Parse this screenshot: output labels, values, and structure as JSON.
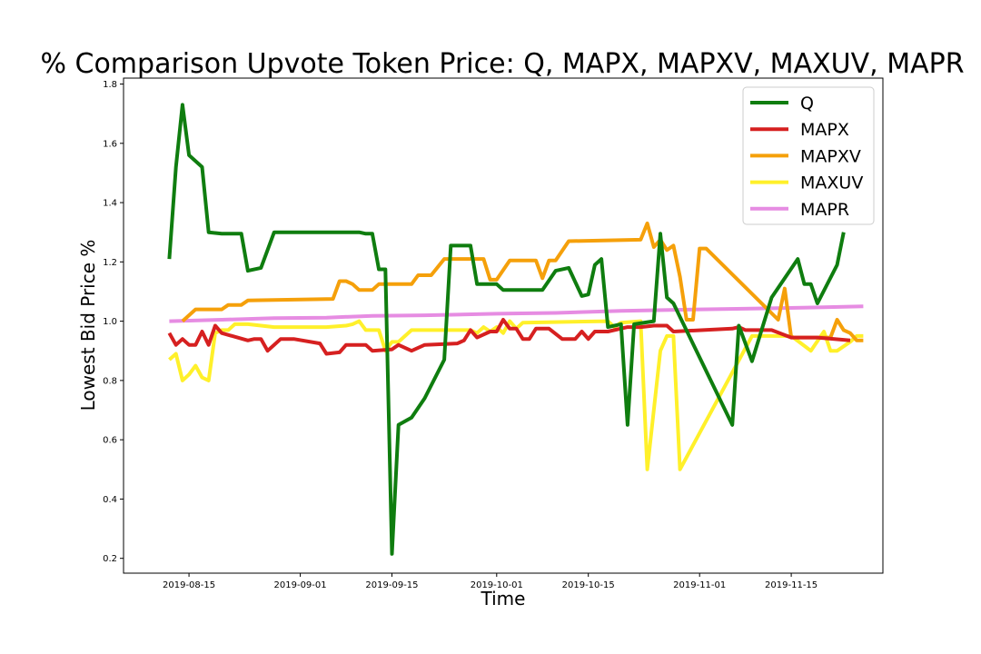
{
  "chart_data": {
    "type": "line",
    "title": "% Comparison Upvote Token Price: Q, MAPX, MAPXV, MAXUV, MAPR",
    "xlabel": "Time",
    "ylabel": "Lowest Bid Price %",
    "xlim": [
      "2019-08-05",
      "2019-11-29"
    ],
    "ylim": [
      0.15,
      1.82
    ],
    "x_ticks": [
      "2019-08-15",
      "2019-09-01",
      "2019-09-15",
      "2019-10-01",
      "2019-10-15",
      "2019-11-01",
      "2019-11-15"
    ],
    "y_ticks": [
      0.2,
      0.4,
      0.6,
      0.8,
      1.0,
      1.2,
      1.4,
      1.6,
      1.8
    ],
    "y_tick_labels": [
      "0.2",
      "0.4",
      "0.6",
      "0.8",
      "1.0",
      "1.2",
      "1.4",
      "1.6",
      "1.8"
    ],
    "grid": false,
    "legend_position": "top-right",
    "series": [
      {
        "name": "Q",
        "color": "#0f7d0f",
        "points": [
          [
            "2019-08-12",
            1.21
          ],
          [
            "2019-08-13",
            1.52
          ],
          [
            "2019-08-14",
            1.73
          ],
          [
            "2019-08-15",
            1.56
          ],
          [
            "2019-08-17",
            1.52
          ],
          [
            "2019-08-18",
            1.3
          ],
          [
            "2019-08-20",
            1.295
          ],
          [
            "2019-08-23",
            1.295
          ],
          [
            "2019-08-24",
            1.17
          ],
          [
            "2019-08-26",
            1.18
          ],
          [
            "2019-08-28",
            1.3
          ],
          [
            "2019-09-03",
            1.3
          ],
          [
            "2019-09-10",
            1.3
          ],
          [
            "2019-09-11",
            1.295
          ],
          [
            "2019-09-12",
            1.295
          ],
          [
            "2019-09-13",
            1.175
          ],
          [
            "2019-09-14",
            1.175
          ],
          [
            "2019-09-15",
            0.215
          ],
          [
            "2019-09-16",
            0.65
          ],
          [
            "2019-09-18",
            0.675
          ],
          [
            "2019-09-20",
            0.74
          ],
          [
            "2019-09-23",
            0.87
          ],
          [
            "2019-09-24",
            1.255
          ],
          [
            "2019-09-27",
            1.255
          ],
          [
            "2019-09-28",
            1.125
          ],
          [
            "2019-10-01",
            1.125
          ],
          [
            "2019-10-02",
            1.105
          ],
          [
            "2019-10-08",
            1.105
          ],
          [
            "2019-10-10",
            1.17
          ],
          [
            "2019-10-12",
            1.18
          ],
          [
            "2019-10-14",
            1.085
          ],
          [
            "2019-10-15",
            1.09
          ],
          [
            "2019-10-16",
            1.19
          ],
          [
            "2019-10-17",
            1.21
          ],
          [
            "2019-10-18",
            0.98
          ],
          [
            "2019-10-20",
            0.99
          ],
          [
            "2019-10-21",
            0.65
          ],
          [
            "2019-10-22",
            0.99
          ],
          [
            "2019-10-25",
            1.0
          ],
          [
            "2019-10-26",
            1.295
          ],
          [
            "2019-10-27",
            1.08
          ],
          [
            "2019-10-28",
            1.06
          ],
          [
            "2019-11-06",
            0.65
          ],
          [
            "2019-11-07",
            0.985
          ],
          [
            "2019-11-09",
            0.865
          ],
          [
            "2019-11-12",
            1.08
          ],
          [
            "2019-11-16",
            1.21
          ],
          [
            "2019-11-17",
            1.125
          ],
          [
            "2019-11-18",
            1.125
          ],
          [
            "2019-11-19",
            1.06
          ],
          [
            "2019-11-22",
            1.19
          ],
          [
            "2019-11-23",
            1.3
          ]
        ]
      },
      {
        "name": "MAPX",
        "color": "#d62020",
        "points": [
          [
            "2019-08-12",
            0.96
          ],
          [
            "2019-08-13",
            0.92
          ],
          [
            "2019-08-14",
            0.94
          ],
          [
            "2019-08-15",
            0.92
          ],
          [
            "2019-08-16",
            0.92
          ],
          [
            "2019-08-17",
            0.965
          ],
          [
            "2019-08-18",
            0.92
          ],
          [
            "2019-08-19",
            0.985
          ],
          [
            "2019-08-20",
            0.96
          ],
          [
            "2019-08-24",
            0.935
          ],
          [
            "2019-08-25",
            0.94
          ],
          [
            "2019-08-26",
            0.94
          ],
          [
            "2019-08-27",
            0.9
          ],
          [
            "2019-08-29",
            0.94
          ],
          [
            "2019-08-31",
            0.94
          ],
          [
            "2019-09-04",
            0.925
          ],
          [
            "2019-09-05",
            0.89
          ],
          [
            "2019-09-07",
            0.895
          ],
          [
            "2019-09-08",
            0.92
          ],
          [
            "2019-09-10",
            0.92
          ],
          [
            "2019-09-11",
            0.92
          ],
          [
            "2019-09-12",
            0.9
          ],
          [
            "2019-09-15",
            0.905
          ],
          [
            "2019-09-16",
            0.92
          ],
          [
            "2019-09-18",
            0.9
          ],
          [
            "2019-09-20",
            0.92
          ],
          [
            "2019-09-25",
            0.925
          ],
          [
            "2019-09-26",
            0.935
          ],
          [
            "2019-09-27",
            0.97
          ],
          [
            "2019-09-28",
            0.945
          ],
          [
            "2019-09-30",
            0.965
          ],
          [
            "2019-10-01",
            0.965
          ],
          [
            "2019-10-02",
            1.005
          ],
          [
            "2019-10-03",
            0.975
          ],
          [
            "2019-10-04",
            0.975
          ],
          [
            "2019-10-05",
            0.94
          ],
          [
            "2019-10-06",
            0.94
          ],
          [
            "2019-10-07",
            0.975
          ],
          [
            "2019-10-09",
            0.975
          ],
          [
            "2019-10-11",
            0.94
          ],
          [
            "2019-10-13",
            0.94
          ],
          [
            "2019-10-14",
            0.965
          ],
          [
            "2019-10-15",
            0.94
          ],
          [
            "2019-10-16",
            0.965
          ],
          [
            "2019-10-18",
            0.965
          ],
          [
            "2019-10-21",
            0.98
          ],
          [
            "2019-10-23",
            0.98
          ],
          [
            "2019-10-25",
            0.985
          ],
          [
            "2019-10-27",
            0.985
          ],
          [
            "2019-10-28",
            0.965
          ],
          [
            "2019-11-06",
            0.975
          ],
          [
            "2019-11-07",
            0.98
          ],
          [
            "2019-11-08",
            0.97
          ],
          [
            "2019-11-12",
            0.97
          ],
          [
            "2019-11-15",
            0.945
          ],
          [
            "2019-11-19",
            0.945
          ],
          [
            "2019-11-24",
            0.935
          ]
        ]
      },
      {
        "name": "MAPXV",
        "color": "#f5a00a",
        "points": [
          [
            "2019-08-14",
            1.0
          ],
          [
            "2019-08-16",
            1.04
          ],
          [
            "2019-08-20",
            1.04
          ],
          [
            "2019-08-21",
            1.055
          ],
          [
            "2019-08-23",
            1.055
          ],
          [
            "2019-08-24",
            1.07
          ],
          [
            "2019-09-06",
            1.075
          ],
          [
            "2019-09-07",
            1.135
          ],
          [
            "2019-09-08",
            1.135
          ],
          [
            "2019-09-09",
            1.125
          ],
          [
            "2019-09-10",
            1.105
          ],
          [
            "2019-09-12",
            1.105
          ],
          [
            "2019-09-13",
            1.125
          ],
          [
            "2019-09-18",
            1.125
          ],
          [
            "2019-09-19",
            1.155
          ],
          [
            "2019-09-21",
            1.155
          ],
          [
            "2019-09-23",
            1.21
          ],
          [
            "2019-09-29",
            1.21
          ],
          [
            "2019-09-30",
            1.14
          ],
          [
            "2019-10-01",
            1.14
          ],
          [
            "2019-10-03",
            1.205
          ],
          [
            "2019-10-07",
            1.205
          ],
          [
            "2019-10-08",
            1.145
          ],
          [
            "2019-10-09",
            1.205
          ],
          [
            "2019-10-10",
            1.205
          ],
          [
            "2019-10-12",
            1.27
          ],
          [
            "2019-10-23",
            1.275
          ],
          [
            "2019-10-24",
            1.33
          ],
          [
            "2019-10-25",
            1.25
          ],
          [
            "2019-10-26",
            1.275
          ],
          [
            "2019-10-27",
            1.24
          ],
          [
            "2019-10-28",
            1.255
          ],
          [
            "2019-10-29",
            1.15
          ],
          [
            "2019-10-30",
            1.005
          ],
          [
            "2019-10-31",
            1.005
          ],
          [
            "2019-11-01",
            1.245
          ],
          [
            "2019-11-02",
            1.245
          ],
          [
            "2019-11-13",
            1.005
          ],
          [
            "2019-11-14",
            1.11
          ],
          [
            "2019-11-15",
            0.945
          ],
          [
            "2019-11-19",
            0.945
          ],
          [
            "2019-11-21",
            0.945
          ],
          [
            "2019-11-22",
            1.005
          ],
          [
            "2019-11-23",
            0.97
          ],
          [
            "2019-11-24",
            0.96
          ],
          [
            "2019-11-25",
            0.935
          ],
          [
            "2019-11-26",
            0.935
          ]
        ]
      },
      {
        "name": "MAXUV",
        "color": "#fff02a",
        "points": [
          [
            "2019-08-12",
            0.87
          ],
          [
            "2019-08-13",
            0.89
          ],
          [
            "2019-08-14",
            0.8
          ],
          [
            "2019-08-15",
            0.82
          ],
          [
            "2019-08-16",
            0.85
          ],
          [
            "2019-08-17",
            0.81
          ],
          [
            "2019-08-18",
            0.8
          ],
          [
            "2019-08-19",
            0.96
          ],
          [
            "2019-08-20",
            0.97
          ],
          [
            "2019-08-21",
            0.97
          ],
          [
            "2019-08-22",
            0.99
          ],
          [
            "2019-08-24",
            0.99
          ],
          [
            "2019-08-28",
            0.98
          ],
          [
            "2019-09-05",
            0.98
          ],
          [
            "2019-09-08",
            0.985
          ],
          [
            "2019-09-09",
            0.99
          ],
          [
            "2019-09-10",
            1.0
          ],
          [
            "2019-09-11",
            0.97
          ],
          [
            "2019-09-13",
            0.97
          ],
          [
            "2019-09-14",
            0.9
          ],
          [
            "2019-09-15",
            0.93
          ],
          [
            "2019-09-16",
            0.93
          ],
          [
            "2019-09-18",
            0.97
          ],
          [
            "2019-09-27",
            0.97
          ],
          [
            "2019-09-28",
            0.96
          ],
          [
            "2019-09-29",
            0.98
          ],
          [
            "2019-09-30",
            0.965
          ],
          [
            "2019-10-01",
            0.98
          ],
          [
            "2019-10-02",
            0.96
          ],
          [
            "2019-10-03",
            1.0
          ],
          [
            "2019-10-04",
            0.975
          ],
          [
            "2019-10-05",
            0.995
          ],
          [
            "2019-10-18",
            1.0
          ],
          [
            "2019-10-19",
            0.98
          ],
          [
            "2019-10-20",
            0.995
          ],
          [
            "2019-10-23",
            1.0
          ],
          [
            "2019-10-24",
            0.5
          ],
          [
            "2019-10-26",
            0.9
          ],
          [
            "2019-10-27",
            0.95
          ],
          [
            "2019-10-28",
            0.95
          ],
          [
            "2019-10-29",
            0.5
          ],
          [
            "2019-11-09",
            0.95
          ],
          [
            "2019-11-15",
            0.95
          ],
          [
            "2019-11-18",
            0.9
          ],
          [
            "2019-11-20",
            0.965
          ],
          [
            "2019-11-21",
            0.9
          ],
          [
            "2019-11-22",
            0.9
          ],
          [
            "2019-11-24",
            0.93
          ],
          [
            "2019-11-25",
            0.95
          ],
          [
            "2019-11-26",
            0.95
          ]
        ]
      },
      {
        "name": "MAPR",
        "color": "#e68ce2",
        "points": [
          [
            "2019-08-12",
            1.0
          ],
          [
            "2019-08-20",
            1.005
          ],
          [
            "2019-08-28",
            1.01
          ],
          [
            "2019-09-05",
            1.012
          ],
          [
            "2019-09-12",
            1.018
          ],
          [
            "2019-09-20",
            1.02
          ],
          [
            "2019-10-01",
            1.025
          ],
          [
            "2019-10-10",
            1.028
          ],
          [
            "2019-10-20",
            1.035
          ],
          [
            "2019-11-01",
            1.04
          ],
          [
            "2019-11-10",
            1.043
          ],
          [
            "2019-11-20",
            1.047
          ],
          [
            "2019-11-26",
            1.05
          ]
        ]
      }
    ]
  }
}
